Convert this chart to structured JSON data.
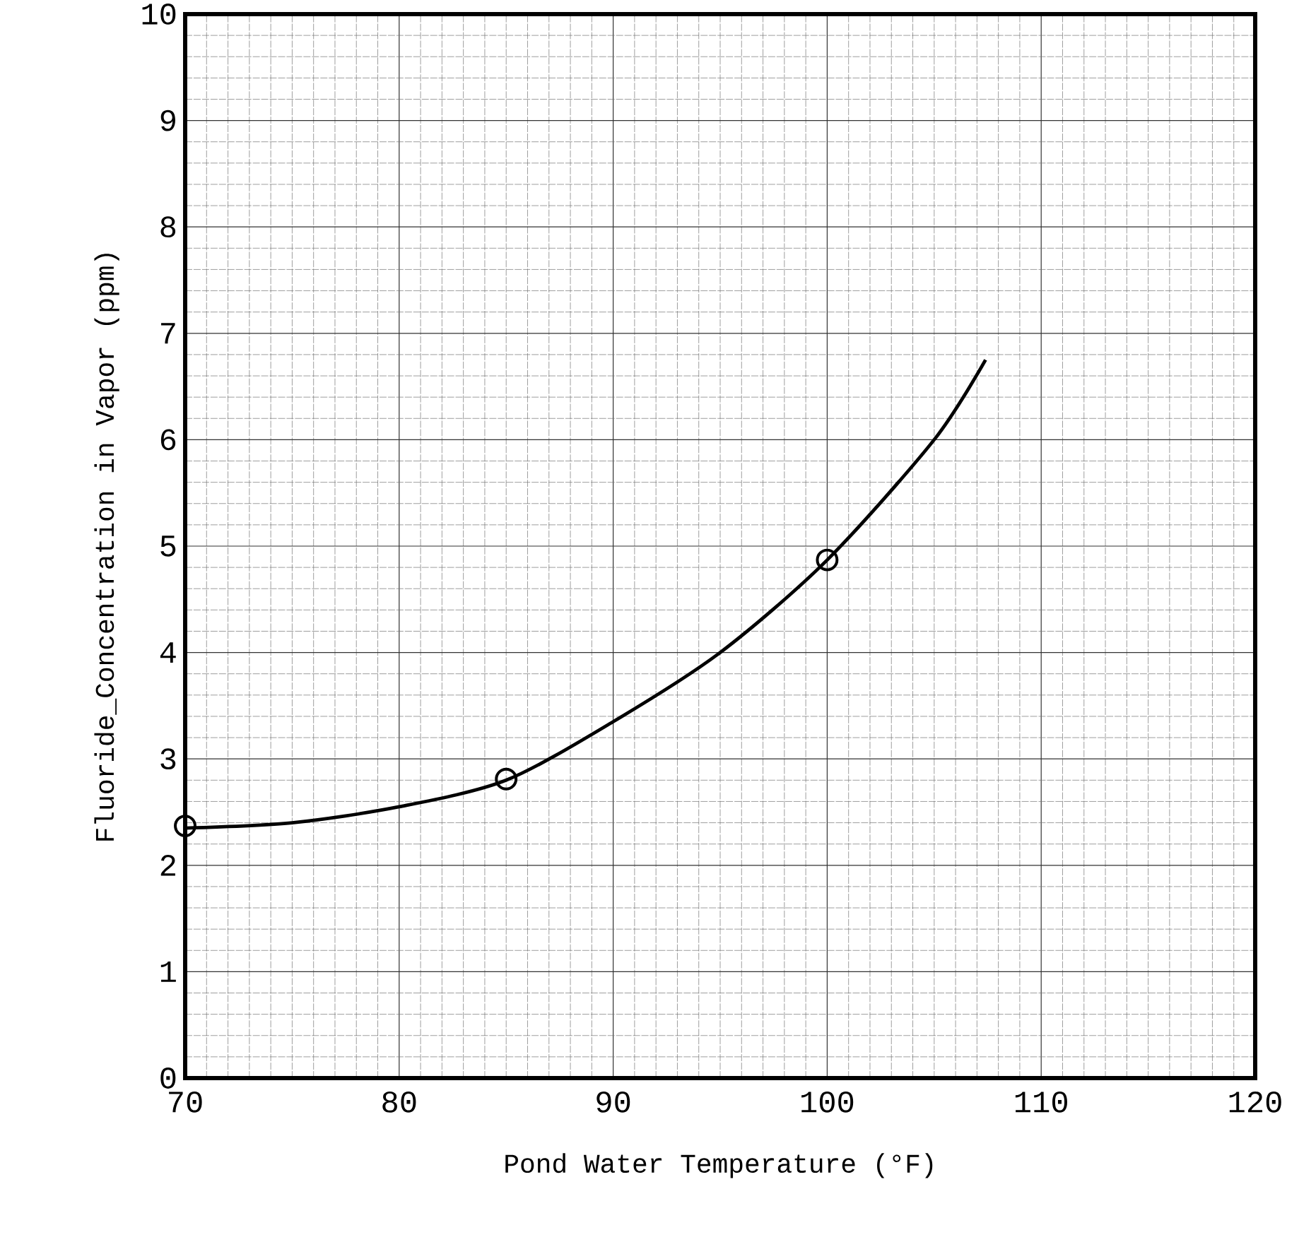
{
  "chart_data": {
    "type": "line",
    "xlabel": "Pond Water Temperature (°F)",
    "ylabel": "Fluoride_Concentration in Vapor (ppm)",
    "xlim": [
      70,
      120
    ],
    "ylim": [
      0,
      10
    ],
    "xticks": [
      70,
      80,
      90,
      100,
      110,
      120
    ],
    "yticks": [
      0,
      1,
      2,
      3,
      4,
      5,
      6,
      7,
      8,
      9,
      10
    ],
    "grid": true,
    "series": [
      {
        "color": "#000000",
        "marker": "none",
        "x": [
          70,
          75,
          80,
          85,
          90,
          95,
          100,
          105,
          107.4
        ],
        "values": [
          2.35,
          2.4,
          2.55,
          2.8,
          3.35,
          4.0,
          4.87,
          6.0,
          6.75
        ]
      },
      {
        "type": "scatter",
        "color": "#000000",
        "marker": "circle",
        "x": [
          70,
          85,
          100
        ],
        "values": [
          2.37,
          2.81,
          4.87
        ]
      }
    ]
  }
}
